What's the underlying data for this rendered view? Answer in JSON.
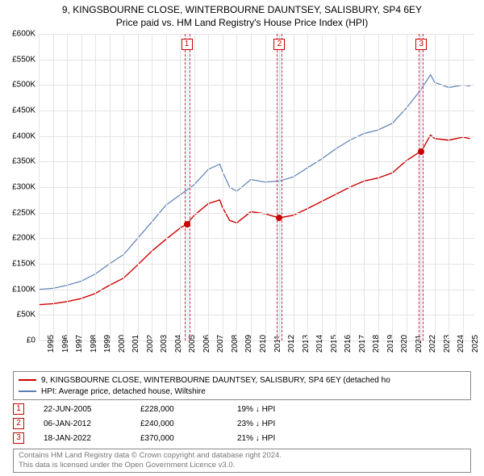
{
  "title": {
    "line1": "9, KINGSBOURNE CLOSE, WINTERBOURNE DAUNTSEY, SALISBURY, SP4 6EY",
    "line2": "Price paid vs. HM Land Registry's House Price Index (HPI)",
    "fontsize": 12
  },
  "chart": {
    "type": "line",
    "background_color": "#ffffff",
    "grid_color": "#e4e4e4",
    "xlim": [
      1995,
      2025.8
    ],
    "ylim": [
      0,
      600000
    ],
    "ytick_step": 50000,
    "ytick_prefix": "£",
    "ytick_suffix": "K",
    "ytick_divisor": 1000,
    "xticks": [
      1995,
      1996,
      1997,
      1998,
      1999,
      2000,
      2001,
      2002,
      2003,
      2004,
      2005,
      2006,
      2007,
      2008,
      2009,
      2010,
      2011,
      2012,
      2013,
      2014,
      2015,
      2016,
      2017,
      2018,
      2019,
      2020,
      2021,
      2022,
      2023,
      2024,
      2025
    ],
    "label_fontsize": 10,
    "series": [
      {
        "name": "property",
        "color": "#cc0000",
        "width": 1.4,
        "legend": "9, KINGSBOURNE CLOSE, WINTERBOURNE DAUNTSEY, SALISBURY, SP4 6EY (detached ho",
        "points": [
          [
            1995,
            70000
          ],
          [
            1996,
            72000
          ],
          [
            1997,
            76000
          ],
          [
            1998,
            82000
          ],
          [
            1999,
            92000
          ],
          [
            2000,
            108000
          ],
          [
            2001,
            122000
          ],
          [
            2002,
            148000
          ],
          [
            2003,
            175000
          ],
          [
            2004,
            198000
          ],
          [
            2005,
            220000
          ],
          [
            2005.47,
            228000
          ],
          [
            2006,
            245000
          ],
          [
            2007,
            268000
          ],
          [
            2007.8,
            275000
          ],
          [
            2008,
            260000
          ],
          [
            2008.5,
            235000
          ],
          [
            2009,
            230000
          ],
          [
            2010,
            252000
          ],
          [
            2011,
            248000
          ],
          [
            2012,
            240000
          ],
          [
            2012.02,
            240000
          ],
          [
            2013,
            245000
          ],
          [
            2014,
            258000
          ],
          [
            2015,
            272000
          ],
          [
            2016,
            286000
          ],
          [
            2017,
            300000
          ],
          [
            2018,
            312000
          ],
          [
            2019,
            318000
          ],
          [
            2020,
            328000
          ],
          [
            2021,
            352000
          ],
          [
            2022,
            370000
          ],
          [
            2022.05,
            370000
          ],
          [
            2022.7,
            402000
          ],
          [
            2023,
            395000
          ],
          [
            2024,
            392000
          ],
          [
            2025,
            398000
          ],
          [
            2025.5,
            395000
          ]
        ]
      },
      {
        "name": "hpi",
        "color": "#5a7fb5",
        "width": 1.2,
        "legend": "HPI: Average price, detached house, Wiltshire",
        "points": [
          [
            1995,
            100000
          ],
          [
            1996,
            102000
          ],
          [
            1997,
            108000
          ],
          [
            1998,
            116000
          ],
          [
            1999,
            130000
          ],
          [
            2000,
            150000
          ],
          [
            2001,
            168000
          ],
          [
            2002,
            200000
          ],
          [
            2003,
            232000
          ],
          [
            2004,
            265000
          ],
          [
            2005,
            285000
          ],
          [
            2006,
            305000
          ],
          [
            2007,
            335000
          ],
          [
            2007.8,
            345000
          ],
          [
            2008,
            330000
          ],
          [
            2008.5,
            300000
          ],
          [
            2009,
            292000
          ],
          [
            2010,
            315000
          ],
          [
            2011,
            310000
          ],
          [
            2012,
            312000
          ],
          [
            2013,
            320000
          ],
          [
            2014,
            338000
          ],
          [
            2015,
            355000
          ],
          [
            2016,
            375000
          ],
          [
            2017,
            392000
          ],
          [
            2018,
            405000
          ],
          [
            2019,
            412000
          ],
          [
            2020,
            425000
          ],
          [
            2021,
            455000
          ],
          [
            2022,
            490000
          ],
          [
            2022.7,
            520000
          ],
          [
            2023,
            505000
          ],
          [
            2024,
            495000
          ],
          [
            2025,
            500000
          ],
          [
            2025.5,
            498000
          ]
        ]
      }
    ],
    "markers": [
      {
        "n": "1",
        "x": 2005.47,
        "y": 228000,
        "band": [
          2005.3,
          2005.7
        ]
      },
      {
        "n": "2",
        "x": 2012.02,
        "y": 240000,
        "band": [
          2011.85,
          2012.2
        ]
      },
      {
        "n": "3",
        "x": 2022.05,
        "y": 370000,
        "band": [
          2021.88,
          2022.22
        ]
      }
    ],
    "marker_band_color": "rgba(200,200,255,0.22)",
    "marker_border_color": "#cc3333"
  },
  "legend": {
    "border_color": "#888888"
  },
  "events": [
    {
      "n": "1",
      "date": "22-JUN-2005",
      "price": "£228,000",
      "diff": "19% ↓ HPI"
    },
    {
      "n": "2",
      "date": "06-JAN-2012",
      "price": "£240,000",
      "diff": "23% ↓ HPI"
    },
    {
      "n": "3",
      "date": "18-JAN-2022",
      "price": "£370,000",
      "diff": "21% ↓ HPI"
    }
  ],
  "footer": {
    "line1": "Contains HM Land Registry data © Crown copyright and database right 2024.",
    "line2": "This data is licensed under the Open Government Licence v3.0.",
    "text_color": "#777777",
    "border_color": "#888888"
  }
}
